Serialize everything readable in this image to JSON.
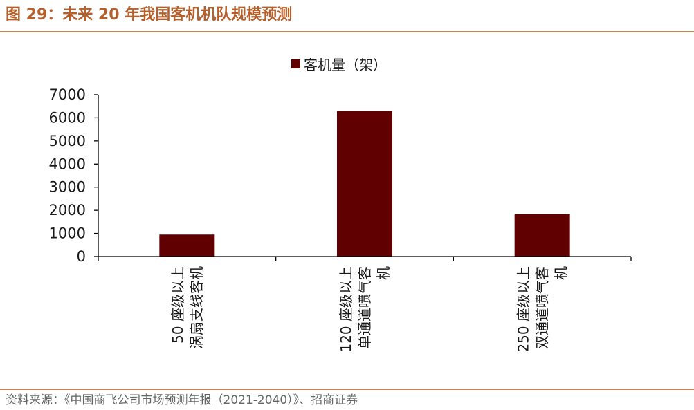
{
  "figure": {
    "title": "图 29：未来 20 年我国客机机队规模预测",
    "source": "资料来源：《中国商飞公司市场预测年报（2021-2040）》、招商证券"
  },
  "colors": {
    "bar": "#600000",
    "title": "#b5602c",
    "rule": "#c4845a",
    "axis": "#000000"
  },
  "chart_data": {
    "type": "bar",
    "title": "",
    "xlabel": "",
    "ylabel": "",
    "ylim": [
      0,
      7000
    ],
    "yticks": [
      0,
      1000,
      2000,
      3000,
      4000,
      5000,
      6000,
      7000
    ],
    "grid": false,
    "legend_position": "top-center",
    "series": [
      {
        "name": "客机量（架）",
        "values": [
          950,
          6300,
          1830
        ]
      }
    ],
    "categories": [
      "50 座级以上涡扇支线客机",
      "120 座级以上单通道喷气客机",
      "250 座级以上双通道喷气客机"
    ],
    "category_label_lines": [
      [
        "50 座级以上",
        "涡扇支线客机"
      ],
      [
        "120 座级以上",
        "单通道喷气客",
        "机"
      ],
      [
        "250 座级以上",
        "双通道喷气客",
        "机"
      ]
    ]
  }
}
